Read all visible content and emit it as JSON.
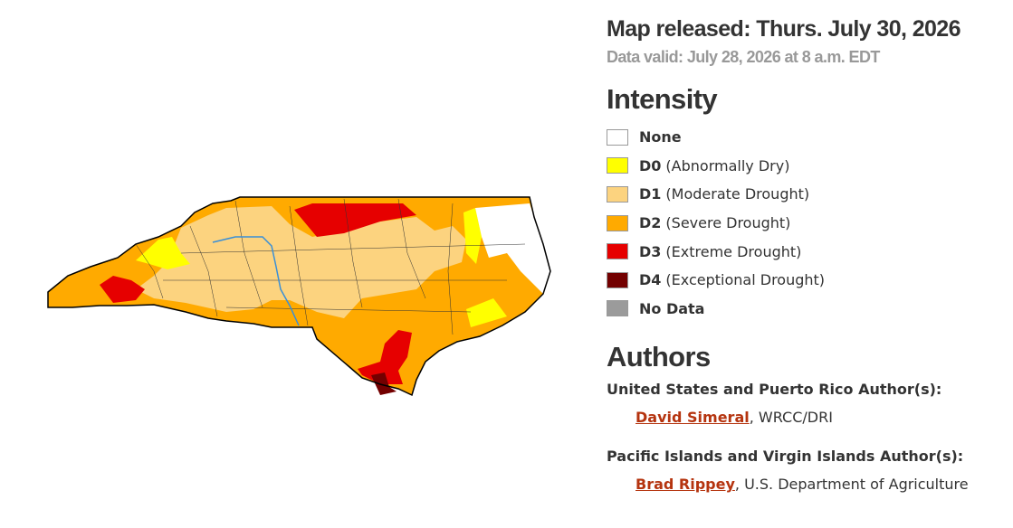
{
  "header": {
    "released": "Map released: Thurs. July 30, 2026",
    "valid": "Data valid: July 28, 2026 at 8 a.m. EDT"
  },
  "legend": {
    "title": "Intensity",
    "items": [
      {
        "label": "None",
        "color": "#ffffff"
      },
      {
        "label": "D0",
        "description": "(Abnormally Dry)",
        "color": "#ffff00"
      },
      {
        "label": "D1",
        "description": "(Moderate Drought)",
        "color": "#fcd37f"
      },
      {
        "label": "D2",
        "description": "(Severe Drought)",
        "color": "#ffaa00"
      },
      {
        "label": "D3",
        "description": "(Extreme Drought)",
        "color": "#e60000"
      },
      {
        "label": "D4",
        "description": "(Exceptional Drought)",
        "color": "#730000"
      },
      {
        "label": "No Data",
        "color": "#9b9b9b"
      }
    ]
  },
  "authors": {
    "title": "Authors",
    "groups": [
      {
        "heading": "United States and Puerto Rico Author(s):",
        "name": "David Simeral",
        "affiliation": ", WRCC/DRI"
      },
      {
        "heading": "Pacific Islands and Virgin Islands Author(s):",
        "name": "Brad Rippey",
        "affiliation": ", U.S. Department of Agriculture"
      }
    ]
  }
}
